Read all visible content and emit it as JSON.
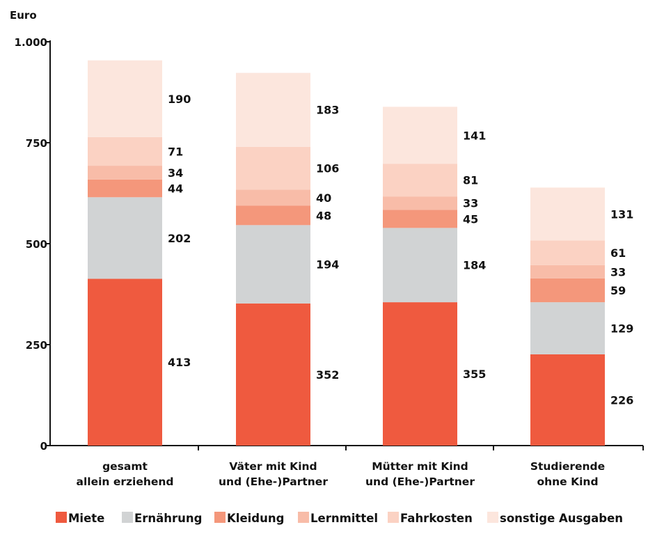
{
  "chart_data": {
    "type": "bar",
    "stacked": true,
    "ylabel": "Euro",
    "ylim": [
      0,
      1000
    ],
    "yticks": [
      0,
      250,
      500,
      750,
      1000
    ],
    "ytick_labels": [
      "0",
      "250",
      "500",
      "750",
      "1.000"
    ],
    "categories": [
      [
        "gesamt",
        "allein erziehend"
      ],
      [
        "Väter mit Kind",
        "und (Ehe-)Partner"
      ],
      [
        "Mütter mit Kind",
        "und (Ehe-)Partner"
      ],
      [
        "Studierende",
        "ohne Kind"
      ]
    ],
    "series": [
      {
        "name": "Miete",
        "color": "#ef5a3f",
        "values": [
          413,
          352,
          355,
          226
        ]
      },
      {
        "name": "Ernährung",
        "color": "#d1d3d4",
        "values": [
          202,
          194,
          184,
          129
        ]
      },
      {
        "name": "Kleidung",
        "color": "#f4977b",
        "values": [
          44,
          48,
          45,
          59
        ]
      },
      {
        "name": "Lernmittel",
        "color": "#f8bca8",
        "values": [
          34,
          40,
          33,
          33
        ]
      },
      {
        "name": "Fahrkosten",
        "color": "#fbd2c3",
        "values": [
          71,
          106,
          81,
          61
        ]
      },
      {
        "name": "sonstige Ausgaben",
        "color": "#fce6dd",
        "values": [
          190,
          183,
          141,
          131
        ]
      }
    ],
    "grid": false,
    "legend_position": "bottom"
  }
}
